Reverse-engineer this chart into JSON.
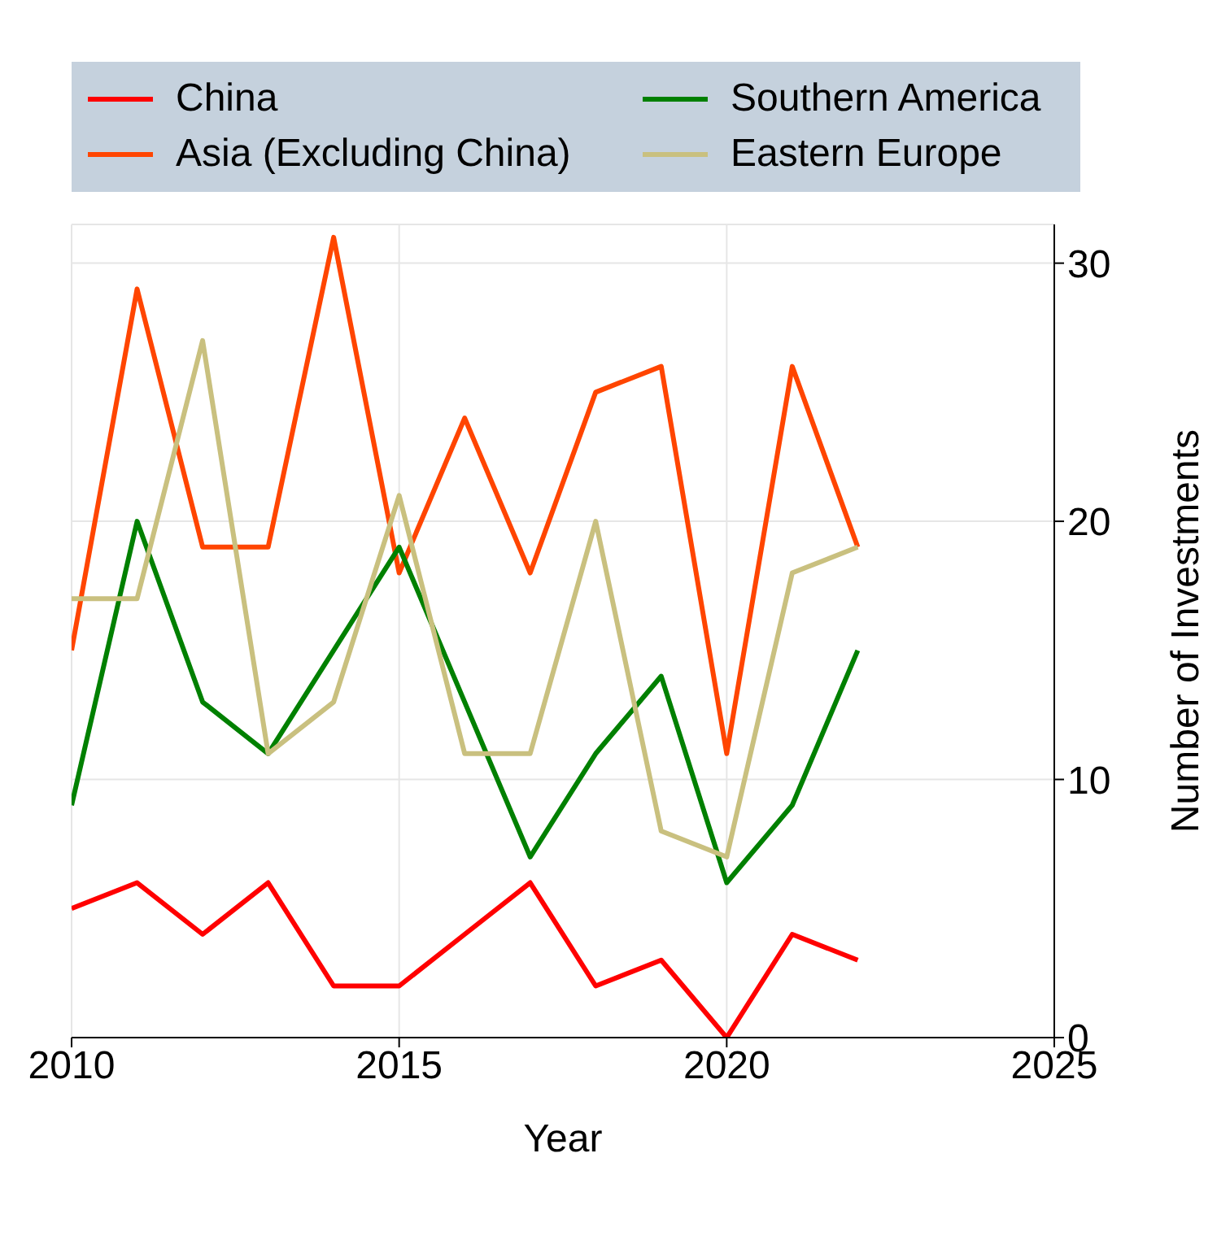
{
  "chart_data": {
    "type": "line",
    "xlabel": "Year",
    "ylabel": "Number of Investments",
    "x": [
      2010,
      2011,
      2012,
      2013,
      2014,
      2015,
      2016,
      2017,
      2018,
      2019,
      2020,
      2021,
      2022
    ],
    "series": [
      {
        "name": "China",
        "color": "#ff0000",
        "values": [
          5,
          6,
          4,
          6,
          2,
          2,
          4,
          6,
          2,
          3,
          0,
          4,
          3
        ]
      },
      {
        "name": "Asia (Excluding China)",
        "color": "#ff4500",
        "values": [
          15,
          29,
          19,
          19,
          31,
          18,
          24,
          18,
          25,
          26,
          11,
          26,
          19
        ]
      },
      {
        "name": "Southern America",
        "color": "#008000",
        "values": [
          9,
          20,
          13,
          11,
          15,
          19,
          13,
          7,
          11,
          14,
          6,
          9,
          15
        ]
      },
      {
        "name": "Eastern Europe",
        "color": "#c9c07f",
        "values": [
          17,
          17,
          27,
          11,
          13,
          21,
          11,
          11,
          20,
          8,
          7,
          18,
          19
        ]
      }
    ],
    "xlim": [
      2010,
      2025
    ],
    "ylim": [
      0,
      31.5
    ],
    "xticks": [
      2010,
      2015,
      2020,
      2025
    ],
    "yticks": [
      0,
      10,
      20,
      30
    ],
    "grid": true,
    "legend": "top"
  }
}
